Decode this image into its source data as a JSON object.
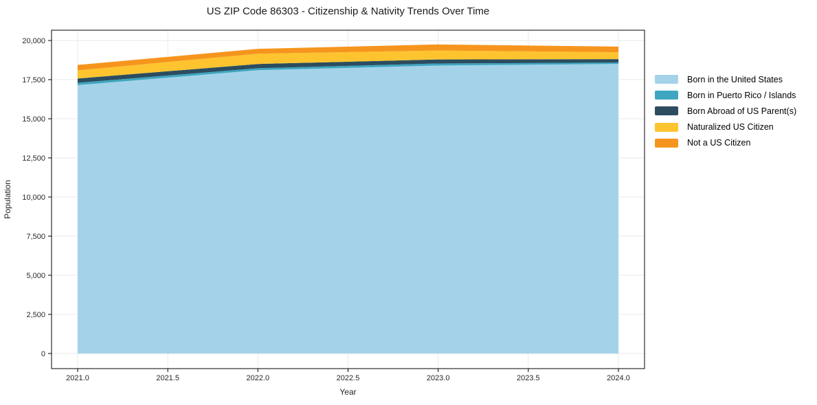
{
  "figure": {
    "background": "#ffffff",
    "frame_color": "#000000",
    "grid_color": "#e9e9e9"
  },
  "chart_data": {
    "type": "area",
    "stacked": true,
    "title": "US ZIP Code 86303 - Citizenship & Nativity Trends Over Time",
    "xlabel": "Year",
    "ylabel": "Population",
    "x": [
      2021.0,
      2022.0,
      2023.0,
      2024.0
    ],
    "series": [
      {
        "name": "Born in the United States",
        "color": "#a4d3e9",
        "values": [
          17150,
          18100,
          18400,
          18500
        ]
      },
      {
        "name": "Born in Puerto Rico / Islands",
        "color": "#3ea6c1",
        "values": [
          150,
          130,
          130,
          90
        ]
      },
      {
        "name": "Born Abroad of US Parent(s)",
        "color": "#2b4d5f",
        "values": [
          270,
          270,
          260,
          220
        ]
      },
      {
        "name": "Naturalized US Citizen",
        "color": "#fdc42f",
        "values": [
          520,
          660,
          570,
          440
        ]
      },
      {
        "name": "Not a US Citizen",
        "color": "#f6951e",
        "values": [
          350,
          310,
          390,
          360
        ]
      }
    ],
    "x_ticks": {
      "values": [
        2021.0,
        2021.5,
        2022.0,
        2022.5,
        2023.0,
        2023.5,
        2024.0
      ],
      "labels": [
        "2021.0",
        "2021.5",
        "2022.0",
        "2022.5",
        "2023.0",
        "2023.5",
        "2024.0"
      ]
    },
    "y_ticks": {
      "values": [
        0,
        2500,
        5000,
        7500,
        10000,
        12500,
        15000,
        17500,
        20000
      ],
      "labels": [
        "0",
        "2,500",
        "5,000",
        "7,500",
        "10,000",
        "12,500",
        "15,000",
        "17,500",
        "20,000"
      ]
    },
    "xlim": [
      2020.86,
      2024.14
    ],
    "ylim": [
      -970,
      20660
    ],
    "grid": true,
    "legend_position": "right"
  }
}
